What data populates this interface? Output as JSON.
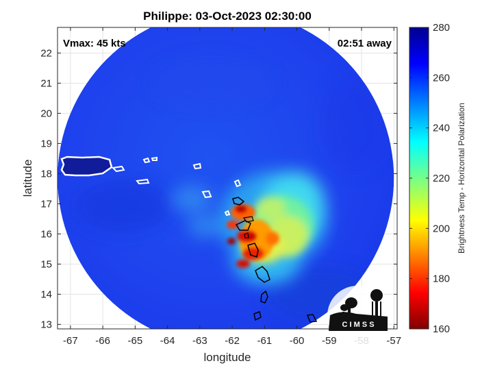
{
  "title": "Philippe: 03-Oct-2023 02:30:00",
  "annotations": {
    "vmax": "Vmax: 45 kts",
    "time_away": "02:51 away"
  },
  "map": {
    "xlabel": "longitude",
    "ylabel": "latitude",
    "xlim": [
      -67.4,
      -56.9
    ],
    "ylim": [
      12.85,
      22.85
    ],
    "xticks": [
      -67,
      -66,
      -65,
      -64,
      -63,
      -62,
      -61,
      -60,
      -59,
      -58,
      -57
    ],
    "yticks": [
      13,
      14,
      15,
      16,
      17,
      18,
      19,
      20,
      21,
      22
    ],
    "grid": true,
    "swath_center": [
      -62.2,
      17.85
    ],
    "swath_radius_deg": 5.2
  },
  "colorbar": {
    "label": "Brightness Temp - Horizontal Polarization",
    "min": 160,
    "max": 280,
    "ticks": [
      160,
      180,
      200,
      220,
      240,
      260,
      280
    ],
    "colormap": "jet"
  },
  "logo": {
    "text": "C I M S S"
  }
}
